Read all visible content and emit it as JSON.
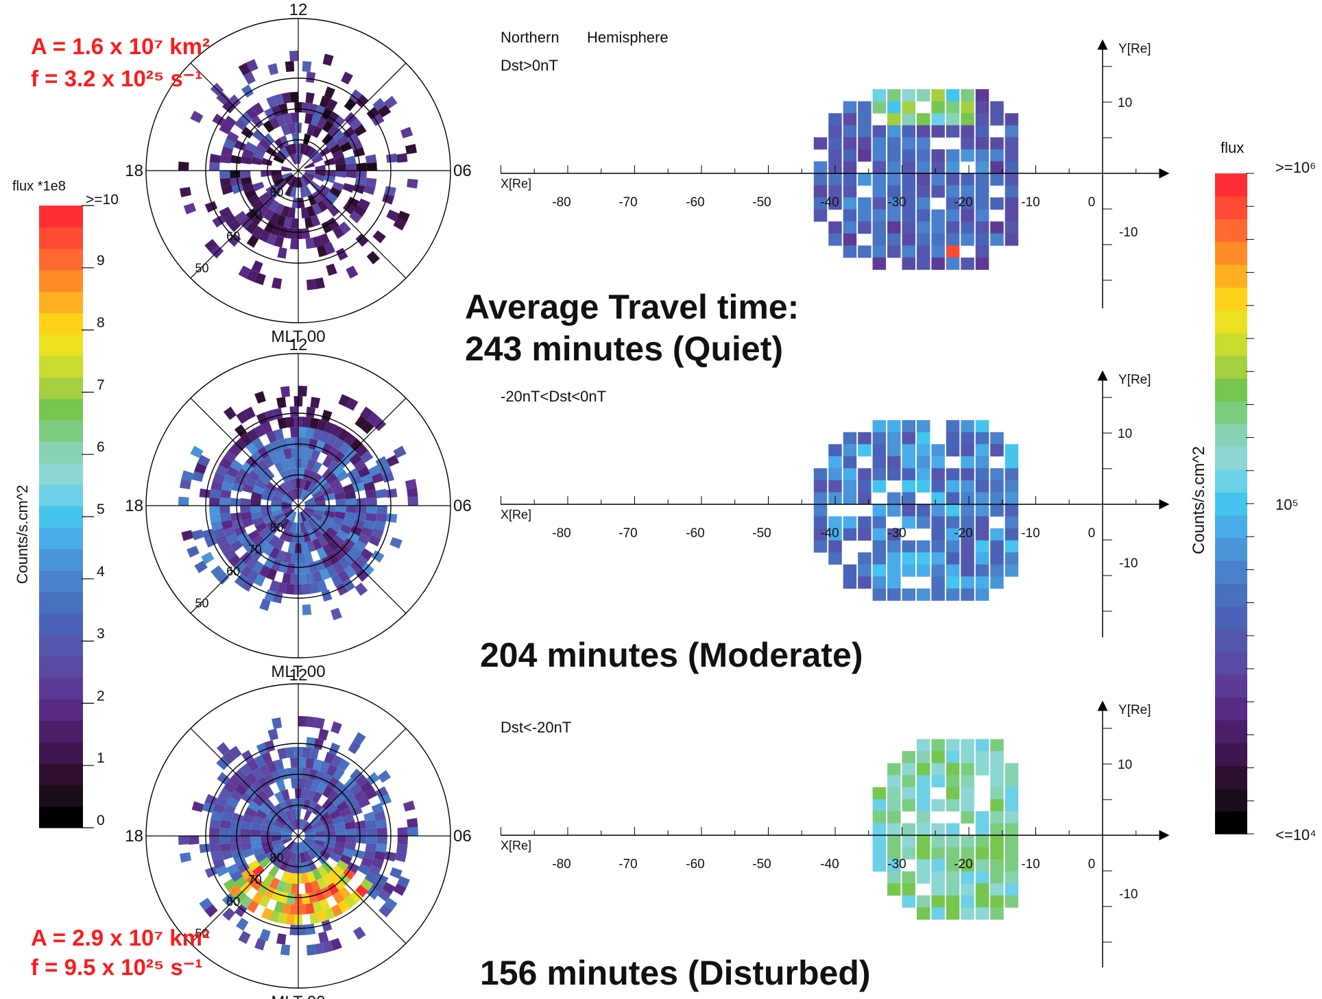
{
  "annotations": {
    "top_area": "A = 1.6 x 10⁷ km²",
    "top_flux": "f = 3.2 x 10²⁵ s⁻¹",
    "bottom_area": "A = 2.9 x 10⁷ km²",
    "bottom_flux": "f = 9.5 x 10²⁵ s⁻¹"
  },
  "hemisphere_title": [
    "Northern",
    "Hemisphere"
  ],
  "travel_time_heading": "Average Travel time:",
  "colors": {
    "palette": [
      "#000000",
      "#1a0d1a",
      "#2e0f30",
      "#3f1650",
      "#4b1e6a",
      "#572a84",
      "#5c3a95",
      "#5a4aa3",
      "#5556ae",
      "#4a63b8",
      "#4a70c0",
      "#4a80cc",
      "#4a94d8",
      "#48acea",
      "#45c4f0",
      "#6cd0e6",
      "#8cd6d4",
      "#88d2b4",
      "#7ccc80",
      "#76c650",
      "#a4d040",
      "#cadc30",
      "#ece020",
      "#ffd21a",
      "#ffb020",
      "#ff8c28",
      "#ff6a30",
      "#ff4a34",
      "#ff2e34"
    ]
  },
  "left_colorbar": {
    "title": "flux *1e8",
    "top_label": ">=10",
    "axis_label": "Counts/s.cm^2",
    "ticks": [
      "9",
      "8",
      "7",
      "6",
      "5",
      "4",
      "3",
      "2",
      "1",
      "0"
    ]
  },
  "right_colorbar": {
    "title": "flux",
    "axis_label": "Counts/s.cm^2",
    "ticks": [
      ">=10⁶",
      "10⁵",
      "<=10⁴"
    ]
  },
  "chart_data": [
    {
      "type": "polar-heatmap",
      "panel": 1,
      "mlt_labels": [
        "12",
        "06",
        "18",
        "MLT 00"
      ],
      "latitude_labels": [
        "80",
        "70",
        "60",
        "50"
      ],
      "color_scale": "flux *1e8 (Counts/s.cm^2), 0 to >=10"
    },
    {
      "type": "polar-heatmap",
      "panel": 2,
      "mlt_labels": [
        "12",
        "06",
        "18",
        "MLT 00"
      ],
      "latitude_labels": [
        "80",
        "70",
        "60",
        "50"
      ],
      "color_scale": "flux *1e8 (Counts/s.cm^2), 0 to >=10"
    },
    {
      "type": "polar-heatmap",
      "panel": 3,
      "mlt_labels": [
        "12",
        "06",
        "18",
        "MLT 00"
      ],
      "latitude_labels": [
        "80",
        "70",
        "60",
        "50"
      ],
      "color_scale": "flux *1e8 (Counts/s.cm^2), 0 to >=10"
    },
    {
      "type": "heatmap",
      "panel": 1,
      "condition": "Dst>0nT",
      "travel_time": "243 minutes (Quiet)",
      "xlabel": "X[Re]",
      "ylabel": "Y[Re]",
      "x_ticks": [
        "-80",
        "-70",
        "-60",
        "-50",
        "-40",
        "-30",
        "-20",
        "-10",
        "0"
      ],
      "y_ticks": [
        "10",
        "-10"
      ]
    },
    {
      "type": "heatmap",
      "panel": 2,
      "condition": "-20nT<Dst<0nT",
      "travel_time": "204 minutes (Moderate)",
      "xlabel": "X[Re]",
      "ylabel": "Y[Re]",
      "x_ticks": [
        "-80",
        "-70",
        "-60",
        "-50",
        "-40",
        "-30",
        "-20",
        "-10",
        "0"
      ],
      "y_ticks": [
        "10",
        "-10"
      ]
    },
    {
      "type": "heatmap",
      "panel": 3,
      "condition": "Dst<-20nT",
      "travel_time": "156 minutes (Disturbed)",
      "xlabel": "X[Re]",
      "ylabel": "Y[Re]",
      "x_ticks": [
        "-80",
        "-70",
        "-60",
        "-50",
        "-40",
        "-30",
        "-20",
        "-10",
        "0"
      ],
      "y_ticks": [
        "10",
        "-10"
      ]
    }
  ]
}
